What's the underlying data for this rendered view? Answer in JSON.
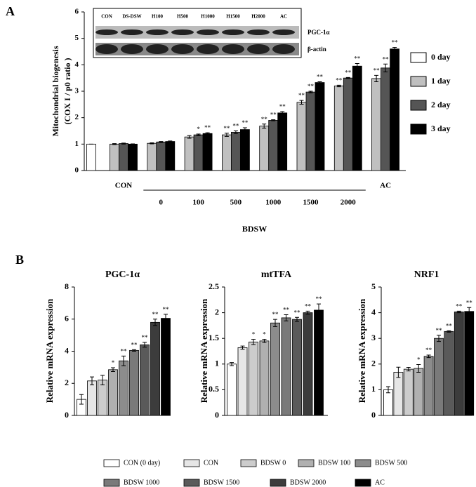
{
  "panel_labels": [
    "A",
    "B"
  ],
  "chart_data": [
    {
      "type": "bar",
      "y_label": [
        "Mitochondrial biogenesis",
        "(COX I / p0 ratio )"
      ],
      "categories": [
        null,
        "CON",
        "0",
        "100",
        "500",
        "1000",
        "1500",
        "2000",
        "AC"
      ],
      "groups": [
        {
          "label": "BDSW",
          "categories": [
            "0",
            "100",
            "500",
            "1000",
            "1500",
            "2000"
          ]
        }
      ],
      "series": [
        {
          "name": "0 day",
          "color": "#ffffff",
          "values": [
            1,
            null,
            null,
            null,
            null,
            null,
            null,
            null,
            null
          ],
          "errors": [
            0,
            null,
            null,
            null,
            null,
            null,
            null,
            null,
            null
          ],
          "significance": [
            null,
            null,
            null,
            null,
            null,
            null,
            null,
            null,
            null
          ]
        },
        {
          "name": "1 day",
          "color": "#c0c0c0",
          "values": [
            null,
            1,
            1.03,
            1.27,
            1.35,
            1.68,
            2.58,
            3.2,
            3.48
          ],
          "errors": [
            null,
            0.02,
            0.02,
            0.05,
            0.06,
            0.08,
            0.07,
            0.03,
            0.12
          ],
          "significance": [
            null,
            null,
            null,
            null,
            "**",
            "**",
            "**",
            "**",
            "**"
          ]
        },
        {
          "name": "2 day",
          "color": "#555555",
          "values": [
            null,
            1.02,
            1.08,
            1.35,
            1.45,
            1.9,
            2.97,
            3.5,
            3.88
          ],
          "errors": [
            null,
            0.02,
            0.02,
            0.03,
            0.05,
            0.02,
            0.03,
            0.02,
            0.15
          ],
          "significance": [
            null,
            null,
            null,
            "*",
            "**",
            "**",
            "**",
            "**",
            "**"
          ]
        },
        {
          "name": "3 day",
          "color": "#000000",
          "values": [
            null,
            1,
            1.1,
            1.4,
            1.55,
            2.18,
            3.33,
            3.95,
            4.6
          ],
          "errors": [
            null,
            0.01,
            0.02,
            0.03,
            0.07,
            0.05,
            0.03,
            0.1,
            0.06
          ],
          "significance": [
            null,
            null,
            null,
            "**",
            "**",
            "**",
            "**",
            "**",
            "**"
          ]
        }
      ],
      "ylim": [
        0,
        6
      ],
      "yticks": [
        0,
        1,
        2,
        3,
        4,
        5,
        6
      ],
      "legend": "right",
      "inset": {
        "lanes": [
          "CON",
          "DS-DSW",
          "H100",
          "H500",
          "H1000",
          "H1500",
          "H2000",
          "AC"
        ],
        "bands": [
          "PGC-1α",
          "β-actin"
        ]
      }
    },
    {
      "type": "bar",
      "title": "PGC-1α",
      "y_label": "Relative mRNA expression",
      "values": [
        1,
        2.15,
        2.2,
        2.85,
        3.4,
        4.05,
        4.4,
        5.8,
        6.05
      ],
      "errors": [
        0.3,
        0.25,
        0.3,
        0.12,
        0.3,
        0.05,
        0.15,
        0.2,
        0.25
      ],
      "significance": [
        null,
        null,
        null,
        "*",
        "**",
        "**",
        "**",
        "**",
        "**"
      ],
      "ylim": [
        0,
        8
      ],
      "yticks": [
        0,
        2,
        4,
        6,
        8
      ]
    },
    {
      "type": "bar",
      "title": "mtTFA",
      "y_label": "Relative mRNA expression",
      "values": [
        1,
        1.32,
        1.43,
        1.45,
        1.8,
        1.9,
        1.87,
        2,
        2.05
      ],
      "errors": [
        0.03,
        0.03,
        0.05,
        0.03,
        0.07,
        0.06,
        0.04,
        0.03,
        0.12
      ],
      "significance": [
        null,
        null,
        "*",
        "*",
        "**",
        "**",
        "**",
        "**",
        "**"
      ],
      "ylim": [
        0,
        2.5
      ],
      "yticks": [
        0,
        0.5,
        1,
        1.5,
        2,
        2.5
      ]
    },
    {
      "type": "bar",
      "title": "NRF1",
      "y_label": "Relative mRNA expression",
      "values": [
        1,
        1.68,
        1.8,
        1.83,
        2.3,
        3,
        3.27,
        4.03,
        4.05
      ],
      "errors": [
        0.12,
        0.2,
        0.07,
        0.15,
        0.05,
        0.12,
        0.03,
        0.03,
        0.15
      ],
      "significance": [
        null,
        null,
        null,
        "*",
        "**",
        "**",
        "**",
        "**",
        "**"
      ],
      "ylim": [
        0,
        5
      ],
      "yticks": [
        0,
        1,
        2,
        3,
        4,
        5
      ]
    }
  ],
  "legend_b": {
    "labels": [
      "CON (0 day)",
      "CON",
      "BDSW 0",
      "BDSW 100",
      "BDSW 500",
      "BDSW 1000",
      "BDSW 1500",
      "BDSW 2000",
      "AC"
    ],
    "colors": [
      "#ffffff",
      "#e6e6e6",
      "#cccccc",
      "#b0b0b0",
      "#8c8c8c",
      "#7a7a7a",
      "#5a5a5a",
      "#3c3c3c",
      "#000000"
    ]
  }
}
